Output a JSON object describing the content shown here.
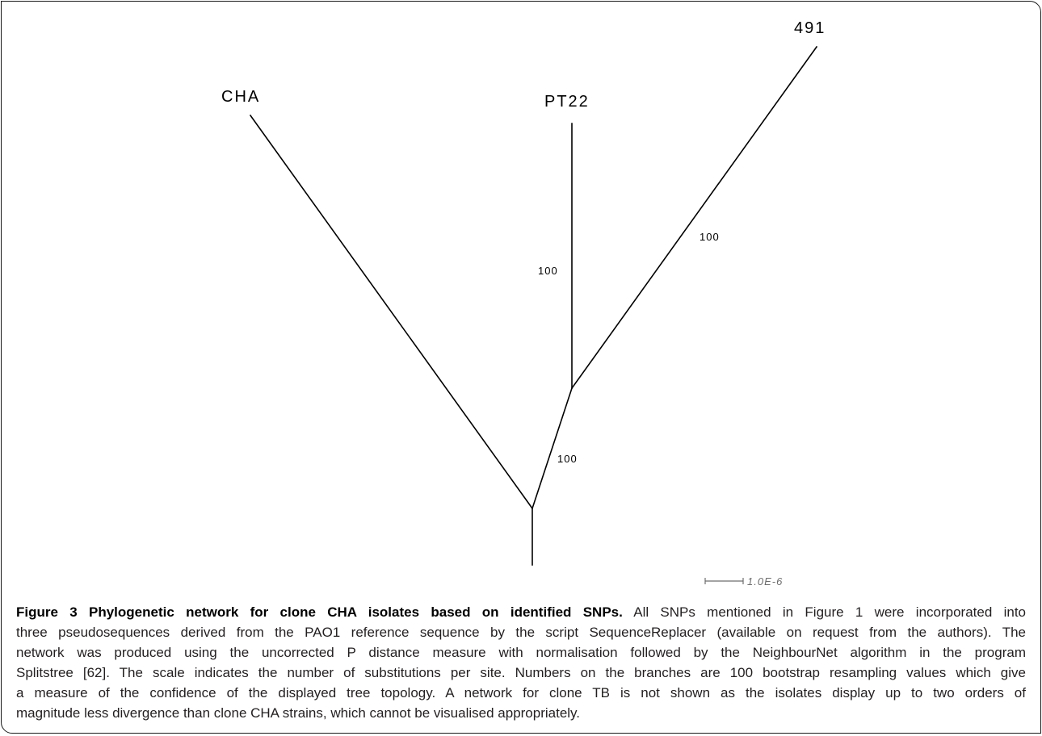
{
  "figure": {
    "taxa": {
      "cha": "CHA",
      "pt22": "PT22",
      "isolate_491": "491"
    },
    "bootstrap": {
      "pt22_branch": "100",
      "branch_491": "100",
      "internal_branch": "100"
    },
    "scale_label": "1.0E-6"
  },
  "caption": {
    "title": "Figure 3 Phylogenetic network for clone CHA isolates based on identified SNPs.",
    "lines": [
      "All SNPs mentioned in Figure 1 were incorporated into",
      "three pseudosequences derived from the PAO1 reference sequence by the script SequenceReplacer (available on request from the authors). The",
      "network was produced using the uncorrected P distance measure with normalisation followed by the NeighbourNet algorithm in the program",
      "Splitstree [62]. The scale indicates the number of substitutions per site. Numbers on the branches are 100 bootstrap resampling values which give",
      "a measure of the confidence of the displayed tree topology. A network for clone TB is not shown as the isolates display up to two orders of",
      "magnitude less divergence than clone CHA strains, which cannot be visualised appropriately."
    ]
  }
}
